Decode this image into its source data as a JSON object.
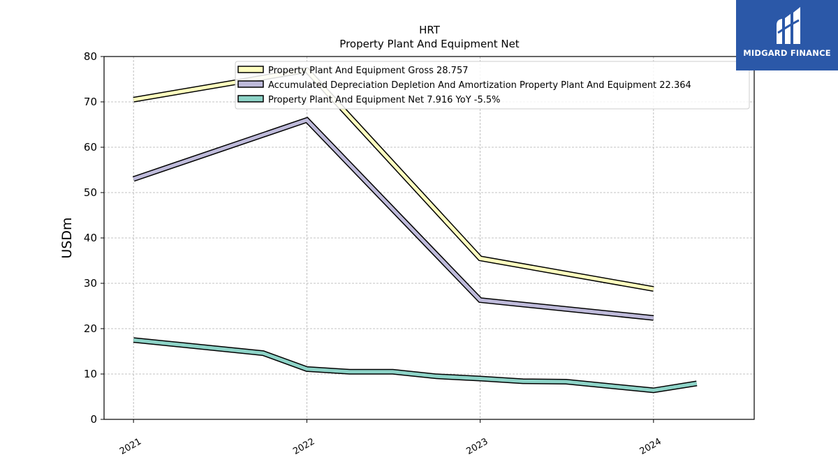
{
  "logo": {
    "text": "MIDGARD FINANCE",
    "bg": "#2b58a8"
  },
  "chart_data": {
    "type": "line",
    "title": "HRT",
    "subtitle": "Property Plant And Equipment Net",
    "xlabel": "",
    "ylabel": "USDm",
    "ylim": [
      0,
      80
    ],
    "yticks": [
      0,
      10,
      20,
      30,
      40,
      50,
      60,
      70,
      80
    ],
    "xlim": [
      "2020-10-31",
      "2024-07-31"
    ],
    "xticks": [
      "2021",
      "2022",
      "2023",
      "2024"
    ],
    "grid": true,
    "legend_position": "top-center",
    "series": [
      {
        "name": "Property Plant And Equipment Gross",
        "legend_label": "Property Plant And Equipment Gross  28.757",
        "color": "#ffffbf",
        "points": [
          {
            "x": "2021-01-01",
            "y": 70.5
          },
          {
            "x": "2022-01-01",
            "y": 77.0
          },
          {
            "x": "2023-01-01",
            "y": 35.5
          },
          {
            "x": "2024-01-01",
            "y": 28.757
          }
        ]
      },
      {
        "name": "Accumulated Depreciation Depletion And Amortization Property Plant And Equipment",
        "legend_label": "Accumulated Depreciation Depletion And Amortization Property Plant And Equipment  22.364",
        "color": "#bebada",
        "points": [
          {
            "x": "2021-01-01",
            "y": 53.0
          },
          {
            "x": "2022-01-01",
            "y": 66.0
          },
          {
            "x": "2023-01-01",
            "y": 26.3
          },
          {
            "x": "2024-01-01",
            "y": 22.364
          }
        ]
      },
      {
        "name": "Property Plant And Equipment Net",
        "legend_label": "Property Plant And Equipment Net  7.916 YoY -5.5%",
        "color": "#8dd3c7",
        "points": [
          {
            "x": "2021-01-01",
            "y": 17.5
          },
          {
            "x": "2021-10-01",
            "y": 14.6
          },
          {
            "x": "2022-01-01",
            "y": 11.1
          },
          {
            "x": "2022-04-01",
            "y": 10.5
          },
          {
            "x": "2022-07-01",
            "y": 10.5
          },
          {
            "x": "2022-10-01",
            "y": 9.5
          },
          {
            "x": "2023-01-01",
            "y": 9.0
          },
          {
            "x": "2023-04-01",
            "y": 8.4
          },
          {
            "x": "2023-07-01",
            "y": 8.3
          },
          {
            "x": "2024-01-01",
            "y": 6.4
          },
          {
            "x": "2024-04-01",
            "y": 7.916
          }
        ]
      }
    ]
  }
}
